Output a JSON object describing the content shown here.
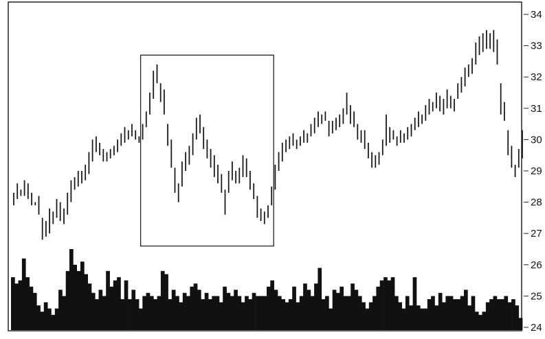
{
  "chart_data": {
    "type": "ohlc-bar-with-volume",
    "title": "",
    "xlabel": "",
    "ylabel": "",
    "ylim": [
      24,
      34
    ],
    "yticks": [
      34,
      33,
      32,
      31,
      30,
      29,
      28,
      27,
      26,
      25,
      24
    ],
    "axis_side": "right",
    "grid": false,
    "legend": "none",
    "colors": {
      "bars": "#1a1a1a",
      "volume": "#111111",
      "frame": "#222222",
      "highlight_box": "#222222"
    },
    "highlight_range": {
      "bar_start": 36,
      "bar_end": 72,
      "price_low": 26.6,
      "price_high": 32.7
    },
    "price_bars": [
      [
        28.3,
        27.9
      ],
      [
        28.6,
        28.1
      ],
      [
        28.4,
        28.2
      ],
      [
        28.7,
        28.2
      ],
      [
        28.6,
        28.1
      ],
      [
        28.3,
        27.9
      ],
      [
        28.0,
        27.9
      ],
      [
        28.2,
        27.6
      ],
      [
        27.5,
        26.8
      ],
      [
        27.4,
        26.9
      ],
      [
        27.8,
        27.0
      ],
      [
        27.7,
        27.3
      ],
      [
        28.1,
        27.5
      ],
      [
        28.0,
        27.4
      ],
      [
        27.8,
        27.3
      ],
      [
        28.3,
        27.6
      ],
      [
        28.7,
        28.0
      ],
      [
        28.8,
        28.4
      ],
      [
        29.0,
        28.5
      ],
      [
        29.0,
        28.6
      ],
      [
        29.2,
        28.7
      ],
      [
        29.6,
        28.9
      ],
      [
        30.0,
        29.3
      ],
      [
        30.1,
        29.6
      ],
      [
        29.9,
        29.5
      ],
      [
        29.7,
        29.3
      ],
      [
        29.6,
        29.3
      ],
      [
        29.7,
        29.4
      ],
      [
        29.8,
        29.5
      ],
      [
        30.0,
        29.6
      ],
      [
        30.2,
        29.8
      ],
      [
        30.4,
        29.9
      ],
      [
        30.3,
        30.0
      ],
      [
        30.5,
        30.1
      ],
      [
        30.3,
        30.0
      ],
      [
        30.1,
        29.9
      ],
      [
        30.5,
        30.0
      ],
      [
        30.9,
        30.4
      ],
      [
        31.5,
        30.8
      ],
      [
        32.2,
        31.3
      ],
      [
        32.4,
        31.8
      ],
      [
        31.8,
        31.2
      ],
      [
        31.6,
        30.8
      ],
      [
        30.5,
        29.8
      ],
      [
        30.0,
        29.1
      ],
      [
        29.1,
        28.3
      ],
      [
        28.6,
        28.0
      ],
      [
        29.3,
        28.5
      ],
      [
        29.6,
        29.0
      ],
      [
        29.8,
        29.2
      ],
      [
        30.2,
        29.5
      ],
      [
        30.7,
        30.0
      ],
      [
        30.8,
        30.2
      ],
      [
        30.4,
        29.7
      ],
      [
        30.0,
        29.4
      ],
      [
        29.7,
        29.1
      ],
      [
        29.5,
        28.8
      ],
      [
        29.2,
        28.6
      ],
      [
        28.9,
        28.3
      ],
      [
        28.4,
        27.6
      ],
      [
        29.0,
        28.3
      ],
      [
        29.3,
        28.7
      ],
      [
        29.0,
        28.6
      ],
      [
        29.1,
        28.6
      ],
      [
        29.5,
        28.8
      ],
      [
        29.4,
        28.8
      ],
      [
        29.0,
        28.4
      ],
      [
        28.6,
        28.1
      ],
      [
        28.2,
        27.5
      ],
      [
        27.8,
        27.4
      ],
      [
        27.7,
        27.3
      ],
      [
        27.9,
        27.5
      ],
      [
        28.5,
        27.9
      ],
      [
        29.2,
        28.4
      ],
      [
        29.6,
        29.0
      ],
      [
        29.9,
        29.3
      ],
      [
        30.0,
        29.6
      ],
      [
        30.1,
        29.7
      ],
      [
        30.2,
        29.8
      ],
      [
        30.0,
        29.7
      ],
      [
        30.1,
        29.8
      ],
      [
        30.3,
        29.9
      ],
      [
        30.2,
        29.9
      ],
      [
        30.5,
        30.1
      ],
      [
        30.7,
        30.2
      ],
      [
        30.9,
        30.4
      ],
      [
        30.8,
        30.5
      ],
      [
        30.9,
        30.6
      ],
      [
        30.6,
        30.1
      ],
      [
        30.6,
        30.2
      ],
      [
        30.7,
        30.3
      ],
      [
        30.8,
        30.4
      ],
      [
        31.0,
        30.5
      ],
      [
        31.5,
        30.8
      ],
      [
        31.1,
        30.5
      ],
      [
        30.9,
        30.4
      ],
      [
        30.5,
        30.0
      ],
      [
        30.3,
        29.9
      ],
      [
        30.3,
        29.7
      ],
      [
        29.9,
        29.4
      ],
      [
        29.6,
        29.1
      ],
      [
        29.5,
        29.1
      ],
      [
        29.6,
        29.2
      ],
      [
        30.0,
        29.5
      ],
      [
        30.8,
        29.8
      ],
      [
        30.4,
        29.9
      ],
      [
        30.3,
        30.0
      ],
      [
        30.1,
        29.8
      ],
      [
        30.3,
        29.9
      ],
      [
        30.2,
        29.9
      ],
      [
        30.4,
        30.0
      ],
      [
        30.5,
        30.1
      ],
      [
        30.7,
        30.3
      ],
      [
        30.9,
        30.4
      ],
      [
        30.8,
        30.5
      ],
      [
        31.1,
        30.6
      ],
      [
        31.3,
        30.8
      ],
      [
        31.2,
        30.9
      ],
      [
        31.5,
        31.0
      ],
      [
        31.4,
        30.9
      ],
      [
        31.3,
        30.8
      ],
      [
        31.6,
        31.0
      ],
      [
        31.4,
        31.0
      ],
      [
        31.3,
        30.9
      ],
      [
        31.8,
        31.3
      ],
      [
        32.0,
        31.5
      ],
      [
        32.3,
        31.7
      ],
      [
        32.4,
        32.0
      ],
      [
        32.6,
        32.1
      ],
      [
        33.1,
        32.4
      ],
      [
        33.3,
        32.7
      ],
      [
        33.4,
        32.8
      ],
      [
        33.5,
        32.9
      ],
      [
        33.4,
        32.9
      ],
      [
        33.5,
        32.8
      ],
      [
        33.2,
        32.4
      ],
      [
        31.8,
        30.8
      ],
      [
        31.2,
        30.6
      ],
      [
        30.3,
        29.5
      ],
      [
        29.8,
        29.1
      ],
      [
        29.2,
        28.8
      ],
      [
        29.7,
        29.1
      ],
      [
        30.3,
        29.4
      ]
    ],
    "volume": [
      25.6,
      25.4,
      25.5,
      26.2,
      25.6,
      25.3,
      25.1,
      24.7,
      24.5,
      24.8,
      24.6,
      24.4,
      24.6,
      25.2,
      25.0,
      25.8,
      26.5,
      26.0,
      25.8,
      26.1,
      25.7,
      25.4,
      25.1,
      24.9,
      25.2,
      25.0,
      25.8,
      25.3,
      25.5,
      25.6,
      24.9,
      25.5,
      24.9,
      25.2,
      24.9,
      24.6,
      25.0,
      25.1,
      25.0,
      24.9,
      25.0,
      25.8,
      25.7,
      24.9,
      25.2,
      25.0,
      24.8,
      25.1,
      25.0,
      25.3,
      25.4,
      25.2,
      24.9,
      25.1,
      24.9,
      25.0,
      25.0,
      24.8,
      25.3,
      25.1,
      25.0,
      25.2,
      25.0,
      24.8,
      25.0,
      24.9,
      25.1,
      25.0,
      25.0,
      25.0,
      25.3,
      25.5,
      25.2,
      25.0,
      24.9,
      24.8,
      24.9,
      25.3,
      24.8,
      25.0,
      25.4,
      25.2,
      25.0,
      25.4,
      25.9,
      24.9,
      25.0,
      24.6,
      25.2,
      25.1,
      25.3,
      25.0,
      25.0,
      25.4,
      25.2,
      25.0,
      24.8,
      24.6,
      24.8,
      25.0,
      25.3,
      25.5,
      25.6,
      25.5,
      25.6,
      25.0,
      24.8,
      24.6,
      25.0,
      24.7,
      25.6,
      24.7,
      24.6,
      24.6,
      24.9,
      25.0,
      24.7,
      25.1,
      24.8,
      25.0,
      25.0,
      24.9,
      24.9,
      25.0,
      25.2,
      24.7,
      25.0,
      24.5,
      24.4,
      24.5,
      24.8,
      24.9,
      25.0,
      24.9,
      24.9,
      25.0,
      24.8,
      24.9,
      24.7,
      24.3
    ]
  }
}
